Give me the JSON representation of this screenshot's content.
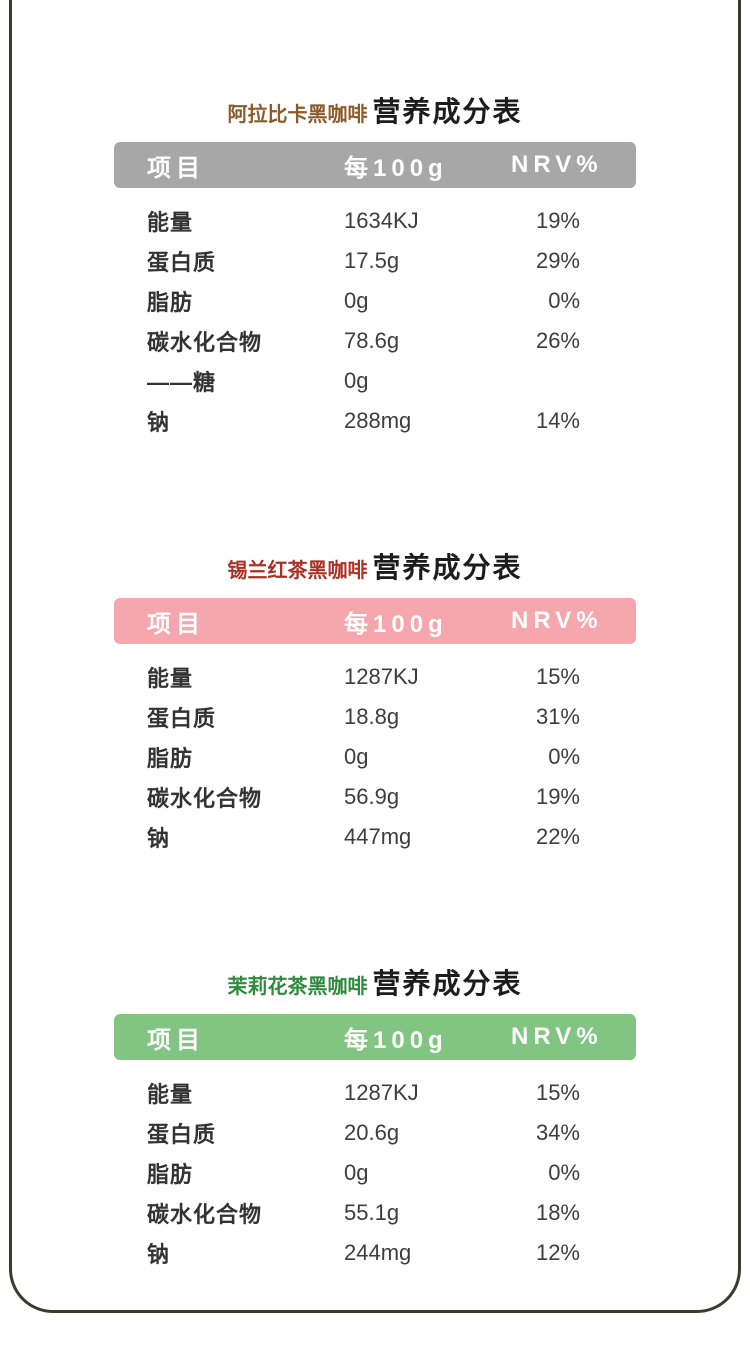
{
  "page": {
    "frame_color": "#3a3a30",
    "background_color": "#ffffff"
  },
  "tables": [
    {
      "product_name": "阿拉比卡黑咖啡",
      "title_suffix": "营养成分表",
      "title_color": "#8c5a2b",
      "header_bg": "#a7a7a7",
      "header_text_color": "#ffffff",
      "columns": {
        "item": "项目",
        "per100g": "每100g",
        "nrv": "NRV%"
      },
      "rows": [
        {
          "item": "能量",
          "per100g": "1634KJ",
          "nrv": "19%"
        },
        {
          "item": "蛋白质",
          "per100g": "17.5g",
          "nrv": "29%"
        },
        {
          "item": "脂肪",
          "per100g": "0g",
          "nrv": "0%"
        },
        {
          "item": "碳水化合物",
          "per100g": "78.6g",
          "nrv": "26%"
        },
        {
          "item": "——糖",
          "per100g": "0g",
          "nrv": ""
        },
        {
          "item": "钠",
          "per100g": "288mg",
          "nrv": "14%"
        }
      ]
    },
    {
      "product_name": "锡兰红茶黑咖啡",
      "title_suffix": "营养成分表",
      "title_color": "#a93226",
      "header_bg": "#f6a6ad",
      "header_text_color": "#ffffff",
      "columns": {
        "item": "项目",
        "per100g": "每100g",
        "nrv": "NRV%"
      },
      "rows": [
        {
          "item": "能量",
          "per100g": "1287KJ",
          "nrv": "15%"
        },
        {
          "item": "蛋白质",
          "per100g": "18.8g",
          "nrv": "31%"
        },
        {
          "item": "脂肪",
          "per100g": "0g",
          "nrv": "0%"
        },
        {
          "item": "碳水化合物",
          "per100g": "56.9g",
          "nrv": "19%"
        },
        {
          "item": "钠",
          "per100g": "447mg",
          "nrv": "22%"
        }
      ]
    },
    {
      "product_name": "茉莉花茶黑咖啡",
      "title_suffix": "营养成分表",
      "title_color": "#2e8b3d",
      "header_bg": "#82c583",
      "header_text_color": "#ffffff",
      "columns": {
        "item": "项目",
        "per100g": "每100g",
        "nrv": "NRV%"
      },
      "rows": [
        {
          "item": "能量",
          "per100g": "1287KJ",
          "nrv": "15%"
        },
        {
          "item": "蛋白质",
          "per100g": "20.6g",
          "nrv": "34%"
        },
        {
          "item": "脂肪",
          "per100g": "0g",
          "nrv": "0%"
        },
        {
          "item": "碳水化合物",
          "per100g": "55.1g",
          "nrv": "18%"
        },
        {
          "item": "钠",
          "per100g": "244mg",
          "nrv": "12%"
        }
      ]
    }
  ]
}
